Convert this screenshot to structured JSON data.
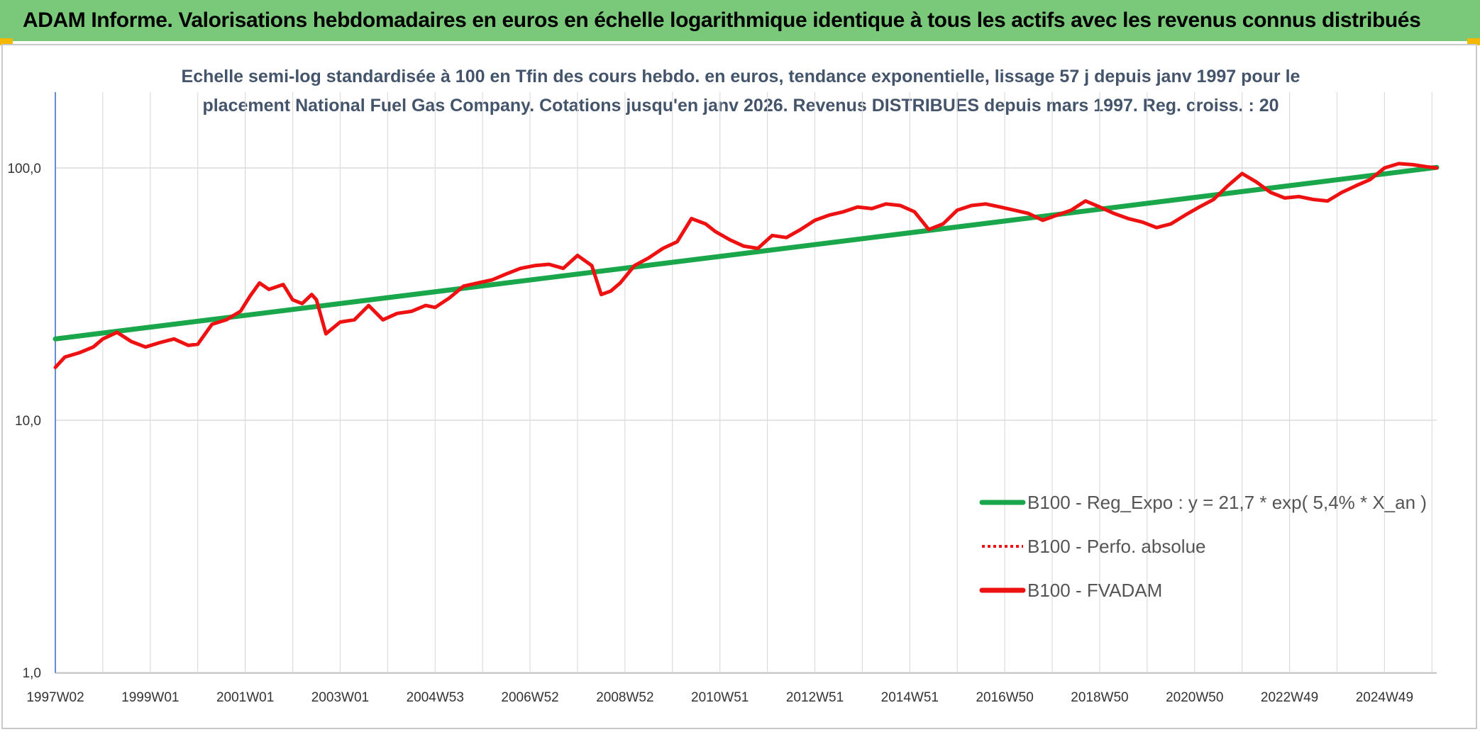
{
  "header": {
    "title": "ADAM Informe. Valorisations hebdomadaires en euros en échelle logarithmique identique à tous les actifs avec les revenus connus distribués"
  },
  "chart_data": {
    "type": "line",
    "subtitle_lines": [
      "Echelle semi-log standardisée à 100 en Tfin des cours hebdo. en euros, tendance exponentielle, lissage 57 j depuis janv 1997 pour le",
      "placement National Fuel Gas Company. Cotations jusqu'en janv 2026. Revenus DISTRIBUES depuis mars 1997. Reg. croiss. : 20"
    ],
    "y_scale": "log",
    "ylim": [
      1,
      200
    ],
    "y_ticks": [
      {
        "value": 100,
        "label": "100,0"
      },
      {
        "value": 10,
        "label": "10,0"
      },
      {
        "value": 1,
        "label": "1,0"
      }
    ],
    "xlim": [
      1997.0,
      2026.1
    ],
    "x_ticks": [
      {
        "value": 1997.0,
        "label": "1997W02"
      },
      {
        "value": 1999.0,
        "label": "1999W01"
      },
      {
        "value": 2001.0,
        "label": "2001W01"
      },
      {
        "value": 2003.0,
        "label": "2003W01"
      },
      {
        "value": 2005.0,
        "label": "2004W53"
      },
      {
        "value": 2007.0,
        "label": "2006W52"
      },
      {
        "value": 2009.0,
        "label": "2008W52"
      },
      {
        "value": 2011.0,
        "label": "2010W51"
      },
      {
        "value": 2013.0,
        "label": "2012W51"
      },
      {
        "value": 2015.0,
        "label": "2014W51"
      },
      {
        "value": 2017.0,
        "label": "2016W50"
      },
      {
        "value": 2019.0,
        "label": "2018W50"
      },
      {
        "value": 2021.0,
        "label": "2020W50"
      },
      {
        "value": 2023.0,
        "label": "2022W49"
      },
      {
        "value": 2025.0,
        "label": "2024W49"
      }
    ],
    "grid": true,
    "legend_position": "lower-right",
    "series": [
      {
        "name": "B100 - Reg_Expo : y = 21,7 * exp( 5,4% *  X_an )",
        "style": "solid",
        "color": "#1aa64a",
        "x": [
          1997.0,
          2026.1
        ],
        "y": [
          21.0,
          100.5
        ]
      },
      {
        "name": "B100 - Perfo. absolue",
        "style": "dotted",
        "color": "#ee1111",
        "x": [],
        "y": []
      },
      {
        "name": "B100 - FVADAM",
        "style": "solid",
        "color": "#ee1111",
        "x": [
          1997.0,
          1997.2,
          1997.5,
          1997.8,
          1998.0,
          1998.3,
          1998.6,
          1998.9,
          1999.2,
          1999.5,
          1999.8,
          2000.0,
          2000.3,
          2000.6,
          2000.9,
          2001.1,
          2001.3,
          2001.5,
          2001.8,
          2002.0,
          2002.2,
          2002.4,
          2002.5,
          2002.7,
          2003.0,
          2003.3,
          2003.6,
          2003.9,
          2004.2,
          2004.5,
          2004.8,
          2005.0,
          2005.3,
          2005.6,
          2005.9,
          2006.2,
          2006.5,
          2006.8,
          2007.1,
          2007.4,
          2007.7,
          2008.0,
          2008.3,
          2008.5,
          2008.7,
          2008.9,
          2009.2,
          2009.5,
          2009.8,
          2010.1,
          2010.4,
          2010.7,
          2010.9,
          2011.2,
          2011.5,
          2011.8,
          2012.1,
          2012.4,
          2012.7,
          2013.0,
          2013.3,
          2013.6,
          2013.9,
          2014.2,
          2014.5,
          2014.8,
          2015.1,
          2015.4,
          2015.7,
          2016.0,
          2016.3,
          2016.6,
          2016.9,
          2017.2,
          2017.5,
          2017.8,
          2018.1,
          2018.4,
          2018.7,
          2019.0,
          2019.3,
          2019.6,
          2019.9,
          2020.2,
          2020.5,
          2020.8,
          2021.1,
          2021.4,
          2021.7,
          2022.0,
          2022.3,
          2022.6,
          2022.9,
          2023.2,
          2023.5,
          2023.8,
          2024.1,
          2024.4,
          2024.7,
          2025.0,
          2025.3,
          2025.6,
          2025.9,
          2026.1
        ],
        "y": [
          16.2,
          17.8,
          18.5,
          19.5,
          21.0,
          22.3,
          20.5,
          19.5,
          20.3,
          21.0,
          19.8,
          20.0,
          24.0,
          25.0,
          27.0,
          31.0,
          35.0,
          33.0,
          34.5,
          30.0,
          29.0,
          31.5,
          30.0,
          22.0,
          24.5,
          25.0,
          28.5,
          25.0,
          26.5,
          27.0,
          28.5,
          28.0,
          30.5,
          34.0,
          35.0,
          36.0,
          38.0,
          40.0,
          41.0,
          41.5,
          40.0,
          45.0,
          41.0,
          31.5,
          32.5,
          35.0,
          41.0,
          44.0,
          48.0,
          51.0,
          63.0,
          60.0,
          56.0,
          52.0,
          49.0,
          48.0,
          54.0,
          53.0,
          57.0,
          62.0,
          65.0,
          67.0,
          70.0,
          69.0,
          72.0,
          71.0,
          67.0,
          57.0,
          60.0,
          68.0,
          71.0,
          72.0,
          70.0,
          68.0,
          66.0,
          62.0,
          65.0,
          68.0,
          74.0,
          70.0,
          66.0,
          63.0,
          61.0,
          58.0,
          60.0,
          65.0,
          70.0,
          75.0,
          85.0,
          95.0,
          88.0,
          80.0,
          76.0,
          77.0,
          75.0,
          74.0,
          80.0,
          85.0,
          90.0,
          100.0,
          104.0,
          103.0,
          101.0,
          100.0
        ]
      }
    ]
  }
}
